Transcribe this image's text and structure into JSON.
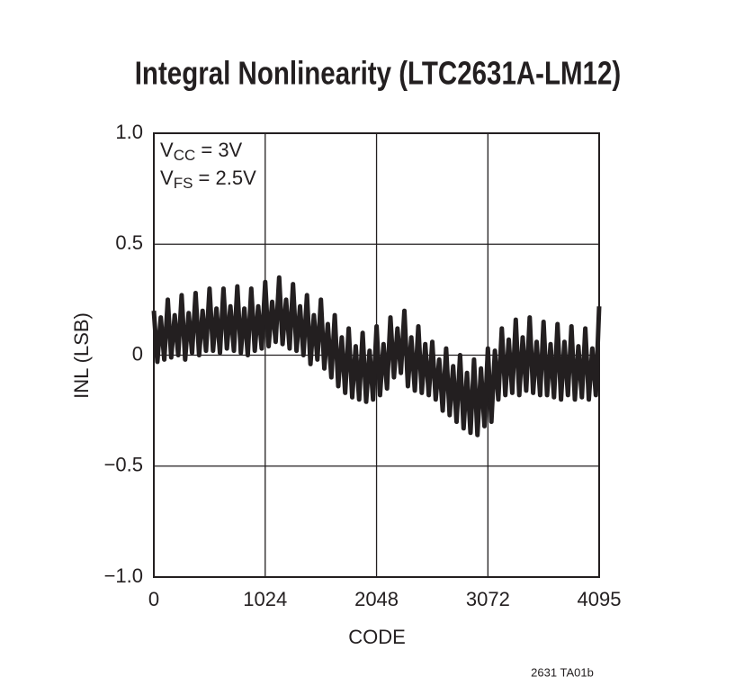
{
  "chart_data": {
    "type": "line",
    "title": "Integral Nonlinearity (LTC2631A-LM12)",
    "x_label": "CODE",
    "y_label": "INL (LSB)",
    "annotations": [
      {
        "main": "V",
        "sub": "CC",
        "rest": " = 3V"
      },
      {
        "main": "V",
        "sub": "FS",
        "rest": " = 2.5V"
      }
    ],
    "footnote": "2631 TA01b",
    "xlim": [
      0,
      4095
    ],
    "xticks": [
      0,
      1024,
      2048,
      3072,
      4095
    ],
    "ylim": [
      -1,
      1
    ],
    "yticks": [
      {
        "value": -1,
        "label": "−1.0"
      },
      {
        "value": -0.5,
        "label": "−0.5"
      },
      0,
      0.5,
      {
        "value": 1,
        "label": "1.0"
      }
    ],
    "grid": true,
    "color": "#231f20",
    "x": [
      0,
      32,
      64,
      96,
      128,
      160,
      192,
      224,
      256,
      288,
      320,
      352,
      384,
      416,
      448,
      480,
      512,
      544,
      576,
      608,
      640,
      672,
      704,
      736,
      768,
      800,
      832,
      864,
      896,
      928,
      960,
      992,
      1024,
      1056,
      1088,
      1120,
      1152,
      1184,
      1216,
      1248,
      1280,
      1312,
      1344,
      1376,
      1408,
      1440,
      1472,
      1504,
      1536,
      1568,
      1600,
      1632,
      1664,
      1696,
      1728,
      1760,
      1792,
      1824,
      1856,
      1888,
      1920,
      1952,
      1984,
      2016,
      2048,
      2080,
      2112,
      2144,
      2176,
      2208,
      2240,
      2272,
      2304,
      2336,
      2368,
      2400,
      2432,
      2464,
      2496,
      2528,
      2560,
      2592,
      2624,
      2656,
      2688,
      2720,
      2752,
      2784,
      2816,
      2848,
      2880,
      2912,
      2944,
      2976,
      3008,
      3040,
      3072,
      3104,
      3136,
      3168,
      3200,
      3232,
      3264,
      3296,
      3328,
      3360,
      3392,
      3424,
      3456,
      3488,
      3520,
      3552,
      3584,
      3616,
      3648,
      3680,
      3712,
      3744,
      3776,
      3808,
      3840,
      3872,
      3904,
      3936,
      3968,
      4000,
      4032,
      4064,
      4095
    ],
    "values": [
      0.2,
      -0.03,
      0.17,
      -0.02,
      0.25,
      -0.01,
      0.18,
      0.0,
      0.27,
      -0.02,
      0.19,
      0.01,
      0.28,
      0.0,
      0.2,
      0.02,
      0.3,
      0.02,
      0.21,
      0.01,
      0.3,
      0.03,
      0.22,
      0.02,
      0.31,
      0.01,
      0.21,
      0.0,
      0.3,
      0.02,
      0.22,
      0.03,
      0.33,
      0.04,
      0.24,
      0.06,
      0.35,
      0.05,
      0.25,
      0.03,
      0.32,
      0.02,
      0.22,
      0.0,
      0.27,
      -0.04,
      0.18,
      -0.02,
      0.25,
      -0.06,
      0.14,
      -0.1,
      0.18,
      -0.14,
      0.08,
      -0.17,
      0.12,
      -0.19,
      0.04,
      -0.2,
      0.1,
      -0.21,
      0.02,
      -0.2,
      0.13,
      -0.18,
      0.05,
      -0.15,
      0.17,
      -0.1,
      0.12,
      -0.08,
      0.2,
      -0.14,
      0.08,
      -0.16,
      0.13,
      -0.17,
      0.05,
      -0.18,
      0.06,
      -0.2,
      -0.02,
      -0.25,
      0.03,
      -0.27,
      -0.05,
      -0.3,
      0.0,
      -0.33,
      -0.08,
      -0.35,
      -0.02,
      -0.36,
      -0.06,
      -0.32,
      0.03,
      -0.3,
      0.02,
      -0.2,
      0.12,
      -0.18,
      0.07,
      -0.17,
      0.16,
      -0.18,
      0.08,
      -0.16,
      0.17,
      -0.17,
      0.06,
      -0.18,
      0.15,
      -0.18,
      0.05,
      -0.19,
      0.14,
      -0.2,
      0.06,
      -0.18,
      0.13,
      -0.2,
      0.04,
      -0.19,
      0.12,
      -0.2,
      0.03,
      -0.18,
      0.22
    ]
  }
}
